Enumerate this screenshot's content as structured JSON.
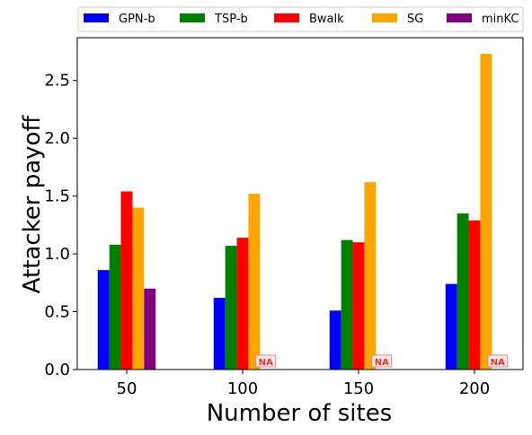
{
  "chart_data": {
    "type": "bar",
    "categories": [
      "50",
      "100",
      "150",
      "200"
    ],
    "series": [
      {
        "name": "GPN-b",
        "color": "#0000ff",
        "values": [
          0.86,
          0.62,
          0.51,
          0.74
        ]
      },
      {
        "name": "TSP-b",
        "color": "#008000",
        "values": [
          1.08,
          1.07,
          1.12,
          1.35
        ]
      },
      {
        "name": "Bwalk",
        "color": "#ff0000",
        "values": [
          1.54,
          1.14,
          1.1,
          1.29
        ]
      },
      {
        "name": "SG",
        "color": "#ffa500",
        "values": [
          1.4,
          1.52,
          1.62,
          2.73
        ]
      },
      {
        "name": "minKC",
        "color": "#800080",
        "values": [
          0.7,
          null,
          null,
          null
        ]
      }
    ],
    "na_label": "NA",
    "xlabel": "Number of sites",
    "ylabel": "Attacker payoff",
    "ylim": [
      0,
      2.87
    ],
    "yticks": [
      "0.0",
      "0.5",
      "1.0",
      "1.5",
      "2.0",
      "2.5"
    ],
    "grid": false,
    "legend_position": "top, outside, single row"
  }
}
